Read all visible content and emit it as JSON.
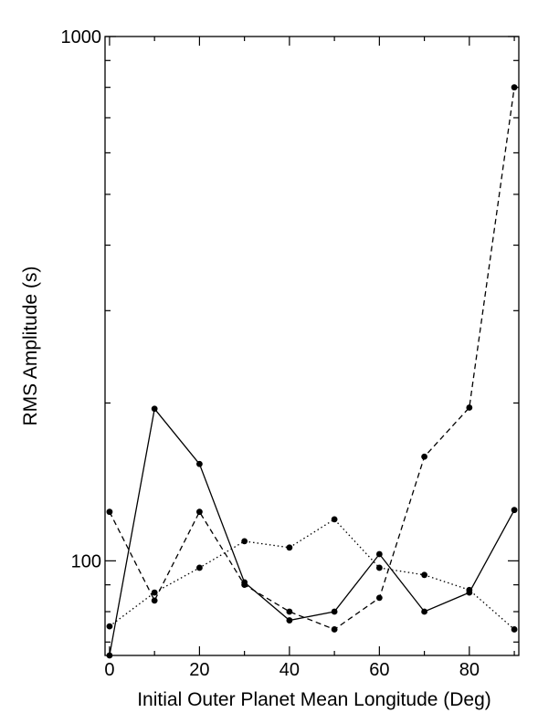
{
  "chart_data": {
    "type": "line",
    "title": "",
    "xlabel": "Initial Outer Planet Mean Longitude (Deg)",
    "ylabel": "RMS Amplitude (s)",
    "y_scale": "log",
    "xlim": [
      -1,
      91
    ],
    "ylim": [
      66,
      1000
    ],
    "grid": false,
    "legend": "none",
    "x_ticks": [
      0,
      20,
      40,
      60,
      80
    ],
    "y_tick_labels": [
      100,
      1000
    ],
    "x": [
      0,
      10,
      20,
      30,
      40,
      50,
      60,
      70,
      80,
      90
    ],
    "series": [
      {
        "style": "solid",
        "values": [
          66,
          195,
          153,
          91,
          77,
          80,
          103,
          80,
          87,
          125
        ]
      },
      {
        "style": "dashed",
        "values": [
          124,
          84,
          124,
          90,
          80,
          74,
          85,
          158,
          196,
          800
        ]
      },
      {
        "style": "dotted",
        "values": [
          75,
          87,
          97,
          109,
          106,
          120,
          97,
          94,
          88,
          74
        ]
      }
    ],
    "colors": {
      "line": "#000000",
      "marker": "#000000",
      "background": "#ffffff"
    }
  }
}
